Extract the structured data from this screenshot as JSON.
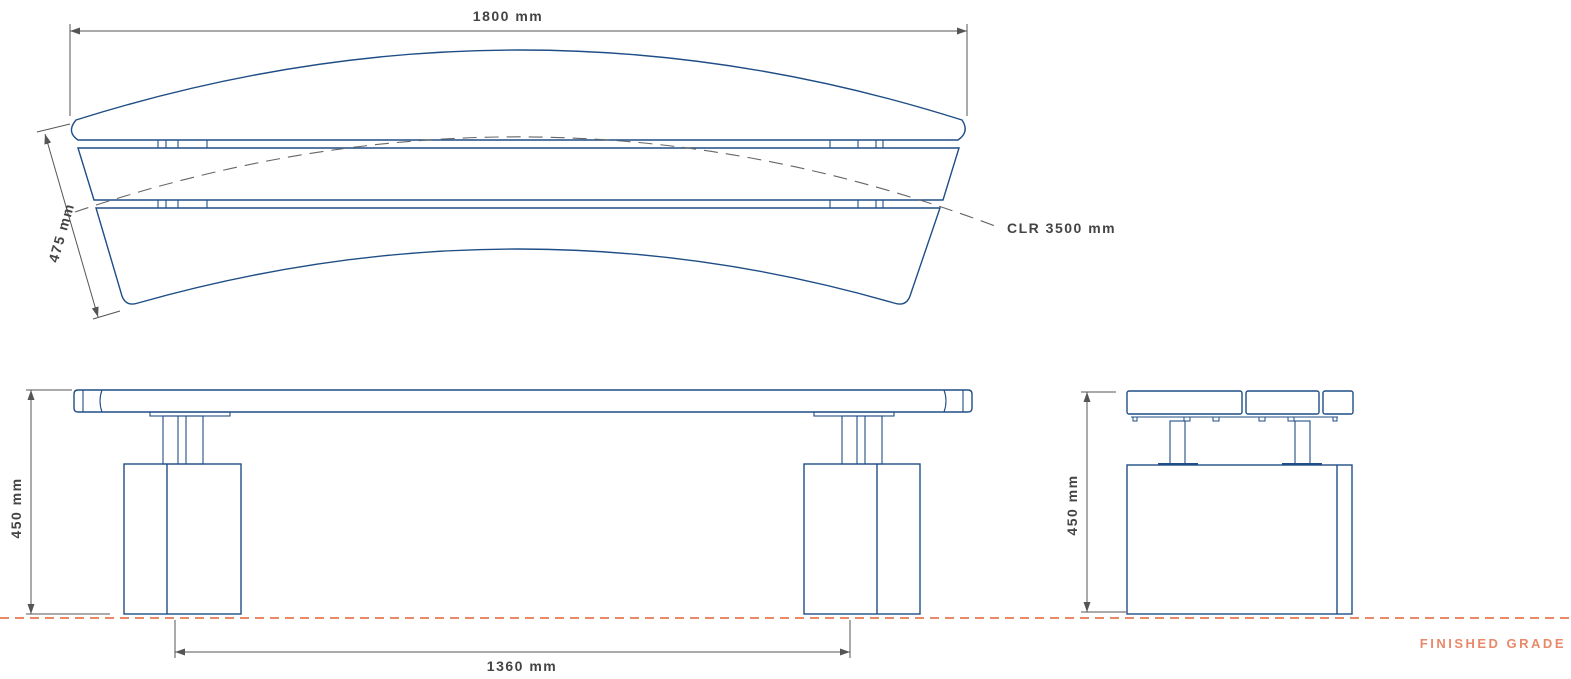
{
  "dimensions": {
    "overall_width": "1800 mm",
    "seat_depth": "475 mm",
    "clear_radius": "CLR 3500 mm",
    "height_front": "450 mm",
    "height_side": "450 mm",
    "base_spacing": "1360 mm"
  },
  "grade_label": "FINISHED GRADE",
  "colors": {
    "line": "#1f4e86",
    "dimension": "#555555",
    "text": "#444444",
    "grade": "#e8896a"
  }
}
